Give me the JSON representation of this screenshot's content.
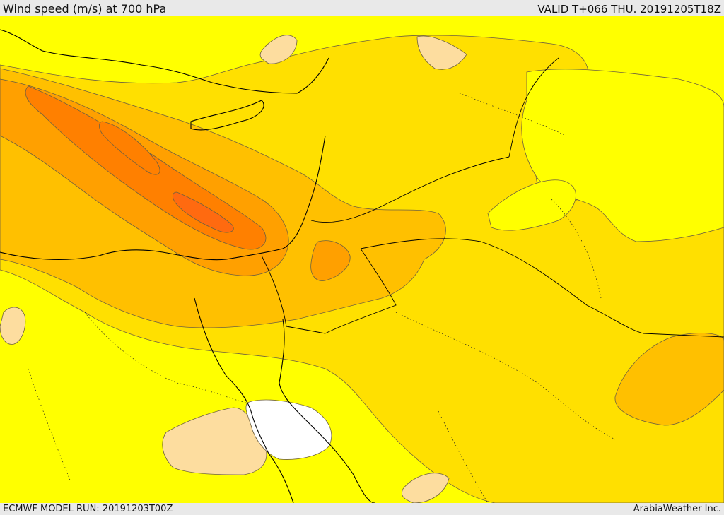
{
  "header": {
    "title": "Wind speed (m/s) at 700 hPa",
    "valid": "VALID T+066 THU. 20191205T18Z"
  },
  "footer": {
    "model_run": "ECMWF MODEL RUN: 20191203T00Z",
    "credit": "ArabiaWeather Inc."
  },
  "colors": {
    "background_band": "#ffff00",
    "band_light": "#ffe000",
    "band_mid": "#ffc000",
    "band_orange": "#ffa000",
    "band_dark": "#ff8000",
    "band_darkest": "#ff6a10",
    "calm_light": "#fddd9f",
    "calm_white": "#ffffff",
    "lines": "#000000"
  },
  "map": {
    "field": "wind speed",
    "level": "700 hPa",
    "region": "Eastern Mediterranean / Middle East"
  }
}
